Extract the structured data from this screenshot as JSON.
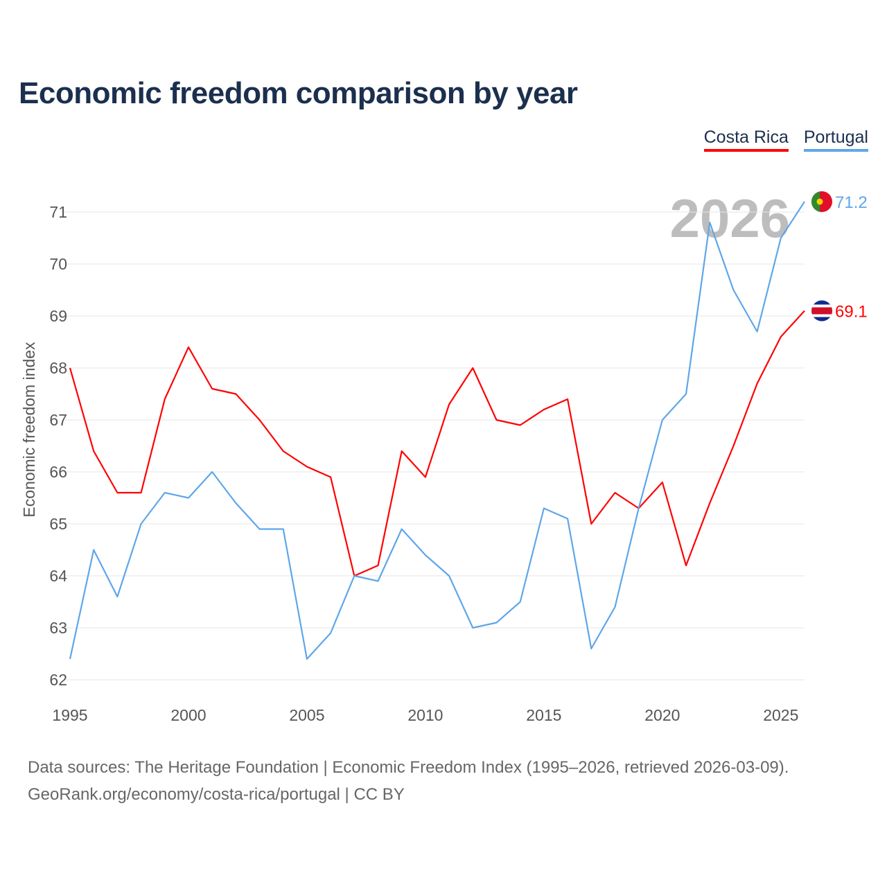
{
  "title": "Economic freedom comparison by year",
  "source_line1": "Data sources: The Heritage Foundation | Economic Freedom Index (1995–2026, retrieved 2026-03-09).",
  "source_line2": "GeoRank.org/economy/costa-rica/portugal | CC BY",
  "chart_data": {
    "type": "line",
    "title": "Economic freedom comparison by year",
    "xlabel": "",
    "ylabel": "Economic freedom index",
    "watermark_year": "2026",
    "xlim": [
      1995,
      2026
    ],
    "ylim": [
      62,
      71
    ],
    "xticks": [
      1995,
      2000,
      2005,
      2010,
      2015,
      2020,
      2025
    ],
    "yticks": [
      62,
      63,
      64,
      65,
      66,
      67,
      68,
      69,
      70,
      71
    ],
    "grid": true,
    "legend_position": "top-right",
    "x": [
      1995,
      1996,
      1997,
      1998,
      1999,
      2000,
      2001,
      2002,
      2003,
      2004,
      2005,
      2006,
      2007,
      2008,
      2009,
      2010,
      2011,
      2012,
      2013,
      2014,
      2015,
      2016,
      2017,
      2018,
      2019,
      2020,
      2021,
      2022,
      2023,
      2024,
      2025,
      2026
    ],
    "series": [
      {
        "name": "Costa Rica",
        "color": "#ff0000",
        "end_label": "69.1",
        "values": [
          68.0,
          66.4,
          65.6,
          65.6,
          67.4,
          68.4,
          67.6,
          67.5,
          67.0,
          66.4,
          66.1,
          65.9,
          64.0,
          64.2,
          66.4,
          65.9,
          67.3,
          68.0,
          67.0,
          66.9,
          67.2,
          67.4,
          65.0,
          65.6,
          65.3,
          65.8,
          64.2,
          65.4,
          66.5,
          67.7,
          68.6,
          69.1
        ]
      },
      {
        "name": "Portugal",
        "color": "#5ea6ea",
        "end_label": "71.2",
        "values": [
          62.4,
          64.5,
          63.6,
          65.0,
          65.6,
          65.5,
          66.0,
          65.4,
          64.9,
          64.9,
          62.4,
          62.9,
          64.0,
          63.9,
          64.9,
          64.4,
          64.0,
          63.0,
          63.1,
          63.5,
          65.3,
          65.1,
          62.6,
          63.4,
          65.3,
          67.0,
          67.5,
          70.8,
          69.5,
          68.7,
          70.5,
          71.2
        ]
      }
    ]
  }
}
